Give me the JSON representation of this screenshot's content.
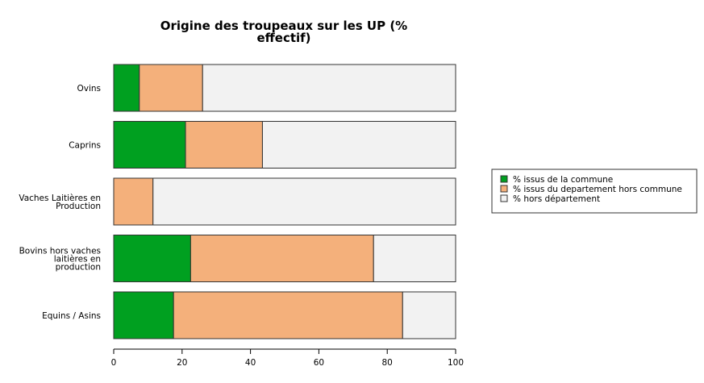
{
  "chart_data": {
    "type": "bar",
    "orientation": "horizontal",
    "stacked": true,
    "title_lines": [
      "Origine des troupeaux sur les UP (%",
      "effectif)"
    ],
    "categories": [
      [
        "Ovins"
      ],
      [
        "Caprins"
      ],
      [
        "Vaches Laitières en",
        "Production"
      ],
      [
        "Bovins hors vaches",
        "laitières en",
        "production"
      ],
      [
        "Equins / Asins"
      ]
    ],
    "series": [
      {
        "name": "% issus de la commune",
        "color": "#00a020",
        "values": [
          7.5,
          21,
          0,
          22.5,
          17.5
        ]
      },
      {
        "name": "% issus du departement hors commune",
        "color": "#f4b07b",
        "values": [
          18.5,
          22.5,
          11.5,
          53.5,
          67
        ]
      },
      {
        "name": "% hors département",
        "color": "#f2f2f2",
        "values": [
          74,
          56.5,
          88.5,
          24,
          15.5
        ]
      }
    ],
    "xlim": [
      0,
      100
    ],
    "xticks": [
      0,
      20,
      40,
      60,
      80,
      100
    ],
    "xlabel": "",
    "ylabel": "",
    "grid": false,
    "legend_position": "right"
  }
}
